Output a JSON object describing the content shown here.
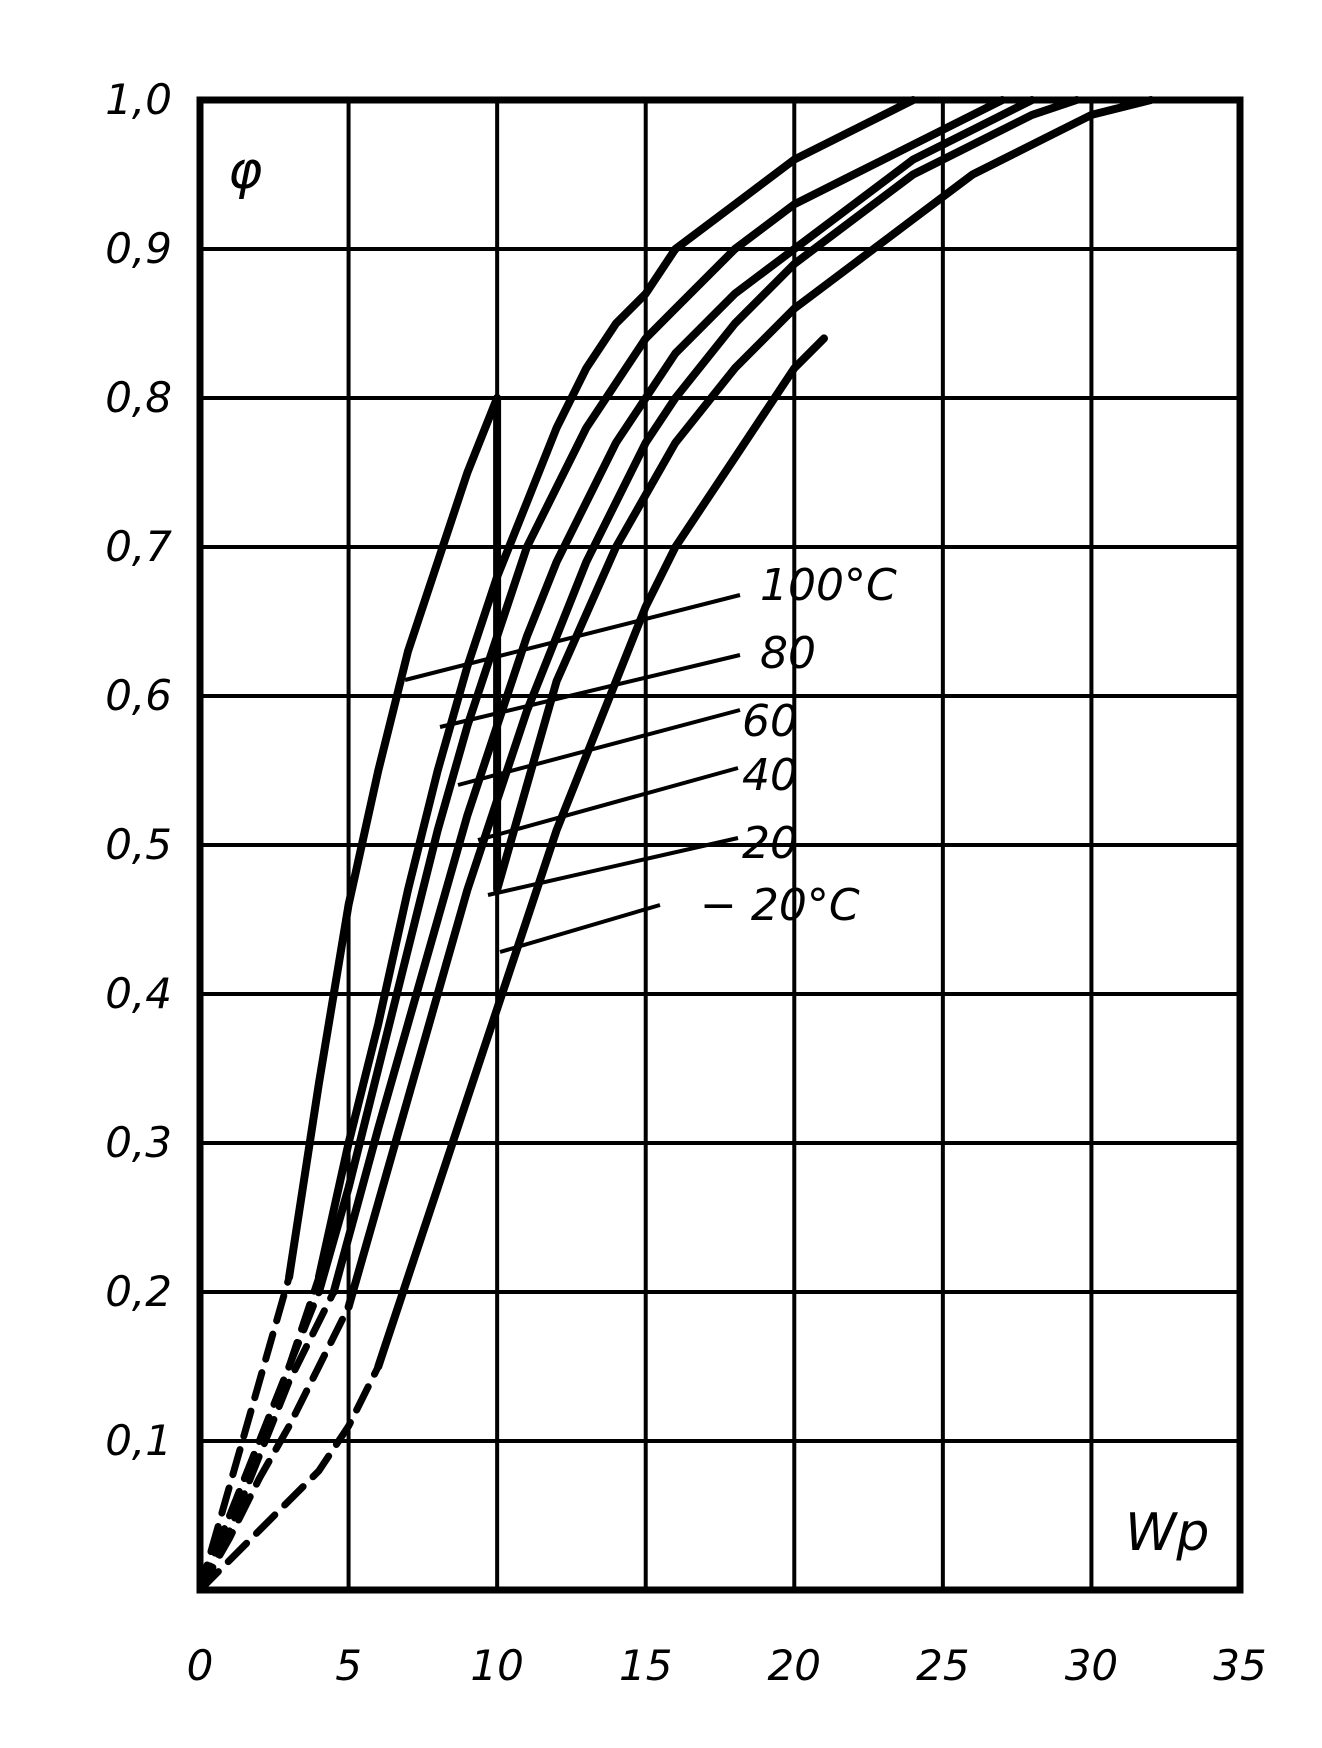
{
  "chart_data": {
    "type": "line",
    "title": "",
    "xlabel": "Wp",
    "ylabel": "φ",
    "xlim": [
      0,
      35
    ],
    "ylim": [
      0,
      1.0
    ],
    "grid": true,
    "x_ticks": [
      "0",
      "5",
      "10",
      "15",
      "20",
      "25",
      "30",
      "35"
    ],
    "y_ticks": [
      "0,1",
      "0,2",
      "0,3",
      "0,4",
      "0,5",
      "0,6",
      "0,7",
      "0,8",
      "0,9",
      "1,0"
    ],
    "series": [
      {
        "name": "100°C",
        "dashed_x": [
          0,
          1,
          2,
          3
        ],
        "dashed_y": [
          0,
          0.07,
          0.14,
          0.21
        ],
        "x": [
          3,
          4,
          5,
          6,
          7,
          8,
          9,
          10
        ],
        "y": [
          0.21,
          0.34,
          0.46,
          0.55,
          0.63,
          0.69,
          0.75,
          0.8
        ]
      },
      {
        "name": "80",
        "dashed_x": [
          0,
          1,
          2,
          3,
          4
        ],
        "dashed_y": [
          0,
          0.05,
          0.1,
          0.15,
          0.21
        ],
        "x": [
          4,
          5,
          6,
          7,
          8,
          9,
          10,
          11,
          12,
          13,
          14,
          15,
          16,
          18,
          20,
          22,
          24
        ],
        "y": [
          0.21,
          0.3,
          0.38,
          0.47,
          0.55,
          0.62,
          0.68,
          0.73,
          0.78,
          0.82,
          0.85,
          0.87,
          0.9,
          0.93,
          0.96,
          0.98,
          1.0
        ]
      },
      {
        "name": "60",
        "dashed_x": [
          0,
          1,
          2,
          3,
          4
        ],
        "dashed_y": [
          0,
          0.05,
          0.1,
          0.15,
          0.2
        ],
        "x": [
          4,
          5,
          6,
          7,
          8,
          9,
          10,
          11,
          12,
          13,
          14,
          15,
          16,
          18,
          20,
          22,
          24,
          27
        ],
        "y": [
          0.2,
          0.27,
          0.35,
          0.43,
          0.51,
          0.58,
          0.64,
          0.7,
          0.74,
          0.78,
          0.81,
          0.84,
          0.86,
          0.9,
          0.93,
          0.95,
          0.97,
          1.0
        ]
      },
      {
        "name": "40",
        "dashed_x": [
          0,
          1,
          2,
          3,
          4.5
        ],
        "dashed_y": [
          0,
          0.04,
          0.09,
          0.14,
          0.2
        ],
        "x": [
          4.5,
          6,
          7,
          8,
          9,
          10,
          11,
          12,
          13,
          14,
          15,
          16,
          18,
          20,
          22,
          24,
          26,
          28
        ],
        "y": [
          0.2,
          0.31,
          0.38,
          0.45,
          0.52,
          0.58,
          0.64,
          0.69,
          0.73,
          0.77,
          0.8,
          0.83,
          0.87,
          0.9,
          0.93,
          0.96,
          0.98,
          1.0
        ]
      },
      {
        "name": "20",
        "dashed_x": [
          0,
          1,
          2,
          3,
          4,
          5
        ],
        "dashed_y": [
          0,
          0.035,
          0.075,
          0.11,
          0.15,
          0.19
        ],
        "x": [
          5,
          6,
          7,
          8,
          9,
          10,
          11,
          12,
          13,
          14,
          15,
          16,
          18,
          20,
          22,
          24,
          26,
          28,
          29.5
        ],
        "y": [
          0.19,
          0.26,
          0.33,
          0.4,
          0.47,
          0.53,
          0.59,
          0.64,
          0.69,
          0.73,
          0.77,
          0.8,
          0.85,
          0.89,
          0.92,
          0.95,
          0.97,
          0.99,
          1.0
        ]
      },
      {
        "name": "− 20°C",
        "dashed_x": [
          0,
          1,
          2,
          3,
          4,
          5,
          6
        ],
        "dashed_y": [
          0,
          0.02,
          0.04,
          0.06,
          0.08,
          0.11,
          0.15
        ],
        "x": [
          6,
          7,
          8,
          9,
          10,
          11,
          12,
          13,
          14,
          15,
          16,
          17,
          18,
          19,
          20,
          21
        ],
        "y": [
          0.15,
          0.21,
          0.27,
          0.33,
          0.39,
          0.45,
          0.51,
          0.56,
          0.61,
          0.66,
          0.7,
          0.73,
          0.76,
          0.79,
          0.82,
          0.84
        ]
      },
      {
        "name": "",
        "dashed_x": [],
        "dashed_y": [],
        "x": [
          10,
          10,
          12,
          14,
          16,
          18,
          20,
          22,
          24,
          26,
          28,
          30,
          32
        ],
        "y": [
          0.8,
          0.47,
          0.61,
          0.7,
          0.77,
          0.82,
          0.86,
          0.89,
          0.92,
          0.95,
          0.97,
          0.99,
          1.0
        ]
      }
    ]
  }
}
